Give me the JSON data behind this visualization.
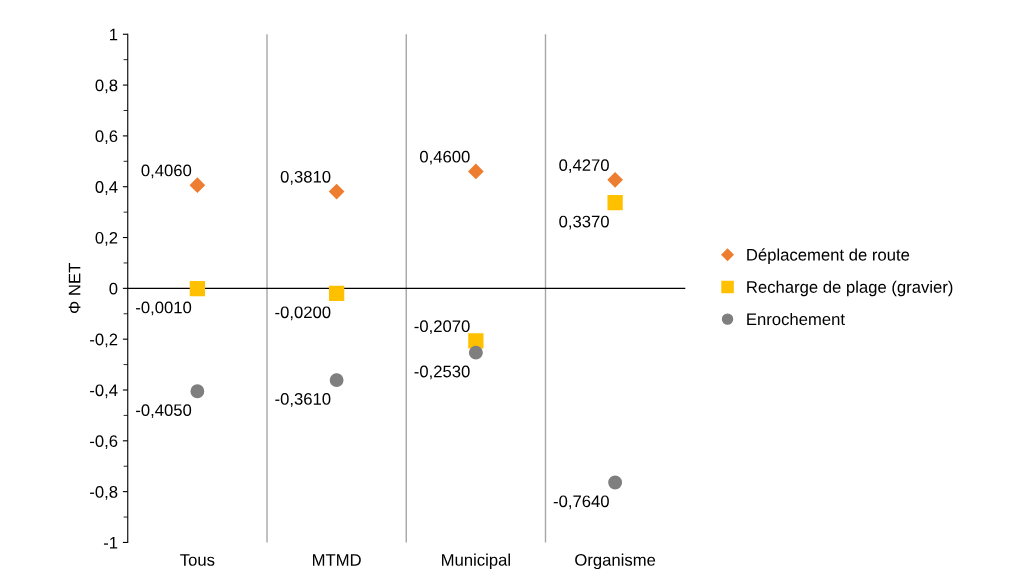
{
  "chart_data": {
    "type": "scatter",
    "ylabel": "Φ NET",
    "categories": [
      "Tous",
      "MTMD",
      "Municipal",
      "Organisme"
    ],
    "series": [
      {
        "name": "Déplacement de route",
        "color": "#ed7d31",
        "marker": "diamond",
        "values": [
          0.406,
          0.381,
          0.46,
          0.427
        ],
        "value_labels": [
          "0,4060",
          "0,3810",
          "0,4600",
          "0,4270"
        ]
      },
      {
        "name": "Recharge de plage (gravier)",
        "color": "#ffc000",
        "marker": "square",
        "values": [
          -0.001,
          -0.02,
          -0.207,
          0.337
        ],
        "value_labels": [
          "-0,0010",
          "-0,0200",
          "-0,2070",
          "0,3370"
        ]
      },
      {
        "name": "Enrochement",
        "color": "#7f7f7f",
        "marker": "circle",
        "values": [
          -0.405,
          -0.361,
          -0.253,
          -0.764
        ],
        "value_labels": [
          "-0,4050",
          "-0,3610",
          "-0,2530",
          "-0,7640"
        ]
      }
    ],
    "ylim": [
      -1,
      1
    ],
    "yticks": [
      {
        "value": -1,
        "label": "-1"
      },
      {
        "value": -0.8,
        "label": "-0,8"
      },
      {
        "value": -0.6,
        "label": "-0,6"
      },
      {
        "value": -0.4,
        "label": "-0,4"
      },
      {
        "value": -0.2,
        "label": "-0,2"
      },
      {
        "value": 0,
        "label": "0"
      },
      {
        "value": 0.2,
        "label": "0,2"
      },
      {
        "value": 0.4,
        "label": "0,4"
      },
      {
        "value": 0.6,
        "label": "0,6"
      },
      {
        "value": 0.8,
        "label": "0,8"
      },
      {
        "value": 1,
        "label": "1"
      }
    ],
    "grid": "x",
    "legend": "right"
  }
}
